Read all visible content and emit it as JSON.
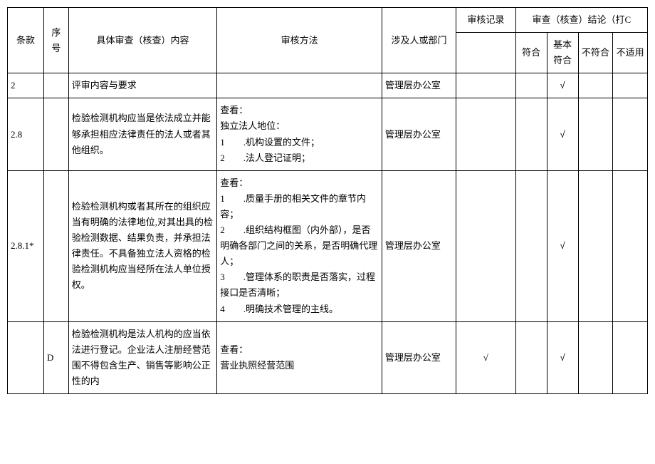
{
  "header": {
    "clause": "条款",
    "seq": "序号",
    "content": "具体审查（核查）内容",
    "method": "审核方法",
    "dept": "涉及人或部门",
    "record": "审核记录",
    "conclusion": "审查（核查）结论（打C",
    "c1": "符合",
    "c2": "基本符合",
    "c3": "不符合",
    "c4": "不适用"
  },
  "rows": [
    {
      "clause": "2",
      "seq": "",
      "content": "评审内容与要求",
      "method": "",
      "dept": "管理层办公室",
      "record": "",
      "c1": "",
      "c2": "√",
      "c3": "",
      "c4": ""
    },
    {
      "clause": "2.8",
      "seq": "",
      "content": "检验检测机构应当是依法成立并能够承担相应法律责任的法人或者其他组织。",
      "method": "查看：\n独立法人地位：\n1　　.机构设置的文件；\n2　　.法人登记证明；",
      "dept": "管理层办公室",
      "record": "",
      "c1": "",
      "c2": "√",
      "c3": "",
      "c4": ""
    },
    {
      "clause": "2.8.1*",
      "seq": "",
      "content": "检验检测机构或者其所在的组织应当有明确的法律地位,对其出具的检验检测数据、结果负责，并承担法律责任。不具备独立法人资格的检验检测机构应当经所在法人单位授权。",
      "method": "查看：\n1　　.质量手册的相关文件的章节内容；\n2　　.组织结构框图（内外部），是否明确各部门之间的关系，是否明确代理人；\n3　　.管理体系的职责是否落实，过程接口是否清晰；\n4　　.明确技术管理的主线。",
      "dept": "管理层办公室",
      "record": "",
      "c1": "",
      "c2": "√",
      "c3": "",
      "c4": ""
    },
    {
      "clause": "",
      "seq": "D",
      "content": "检验检测机构是法人机构的应当依法进行登记。企业法人注册经营范围不得包含生产、销售等影响公正性的内",
      "method": "查看：\n营业执照经营范围",
      "dept": "管理层办公室",
      "record": "√",
      "c1": "",
      "c2": "√",
      "c3": "",
      "c4": ""
    }
  ],
  "style": {
    "font_size_body": 13,
    "line_height": 1.7,
    "border_color": "#000000",
    "bg_color": "#ffffff",
    "text_color": "#000000"
  }
}
